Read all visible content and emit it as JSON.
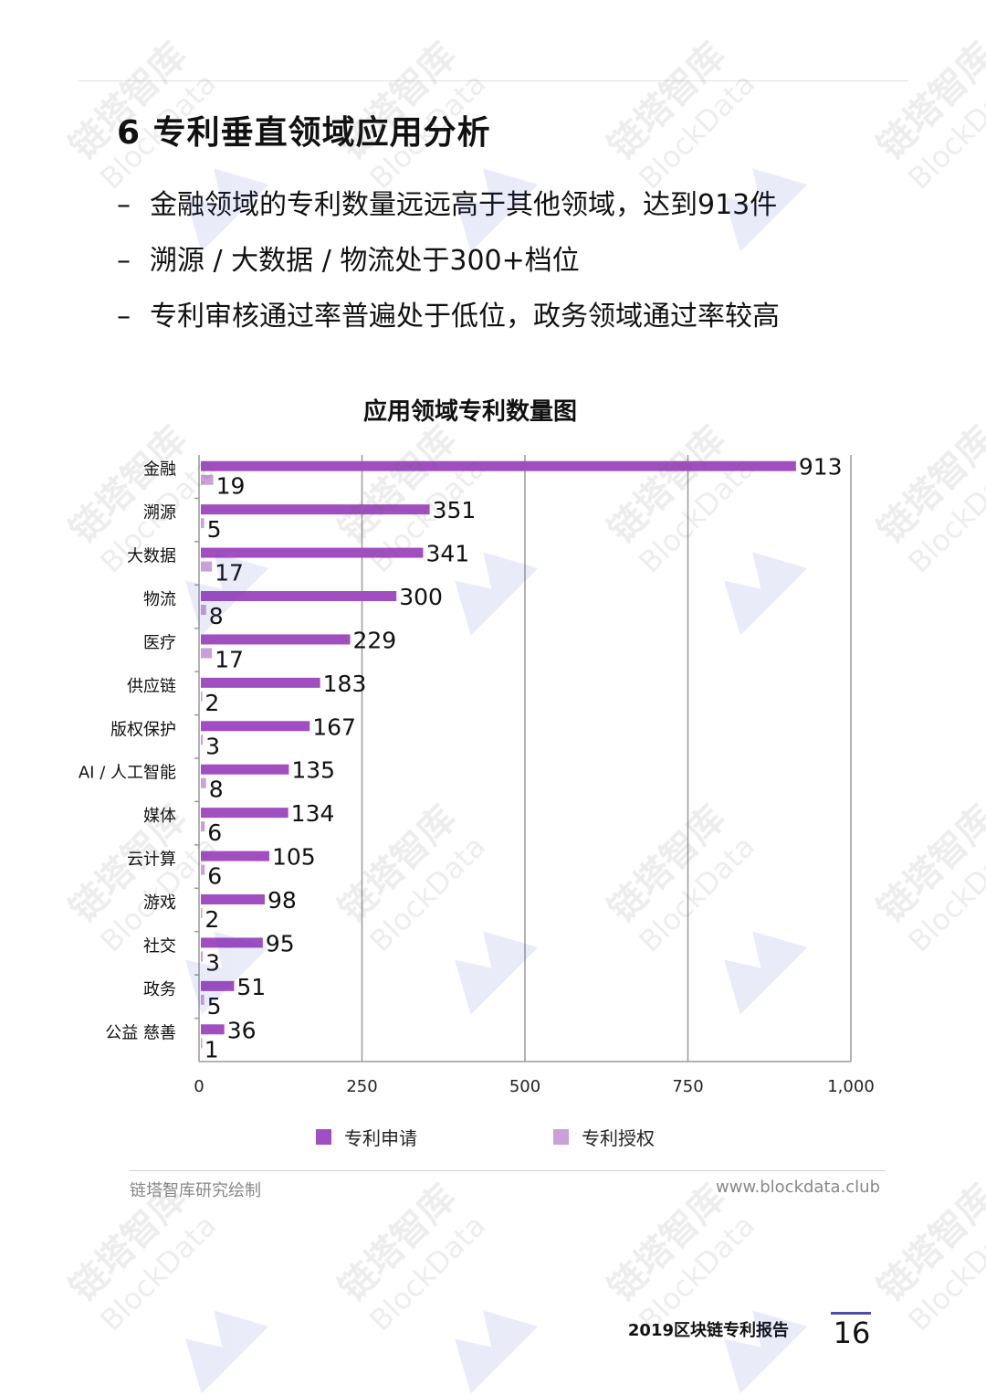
{
  "page": {
    "title": "6 专利垂直领域应用分析",
    "bullets": [
      "金融领域的专利数量远远高于其他领域，达到913件",
      "溯源 / 大数据 / 物流处于300+档位",
      "专利审核通过率普遍处于低位，政务领域通过率较高"
    ],
    "bullet_marker": "–",
    "source": "链塔智库研究绘制",
    "website": "www.blockdata.club",
    "report_title": "2019区块链专利报告",
    "page_number": "16",
    "watermark_text": "链塔智库",
    "watermark_subtext": "BlockData"
  },
  "chart_data": {
    "type": "bar",
    "orientation": "horizontal",
    "title": "应用领域专利数量图",
    "categories": [
      "金融",
      "溯源",
      "大数据",
      "物流",
      "医疗",
      "供应链",
      "版权保护",
      "AI / 人工智能",
      "媒体",
      "云计算",
      "游戏",
      "社交",
      "政务",
      "公益 慈善"
    ],
    "series": [
      {
        "name": "专利申请",
        "color": "#a14fc0",
        "values": [
          913,
          351,
          341,
          300,
          229,
          183,
          167,
          135,
          134,
          105,
          98,
          95,
          51,
          36
        ]
      },
      {
        "name": "专利授权",
        "color": "#c9a0da",
        "values": [
          19,
          5,
          17,
          8,
          17,
          2,
          3,
          8,
          6,
          6,
          2,
          3,
          5,
          1
        ]
      }
    ],
    "xlim": [
      0,
      1000
    ],
    "xticks": [
      0,
      250,
      500,
      750,
      1000
    ],
    "xtick_labels": [
      "0",
      "250",
      "500",
      "750",
      "1,000"
    ],
    "grid": "vertical",
    "legend": "bottom"
  }
}
